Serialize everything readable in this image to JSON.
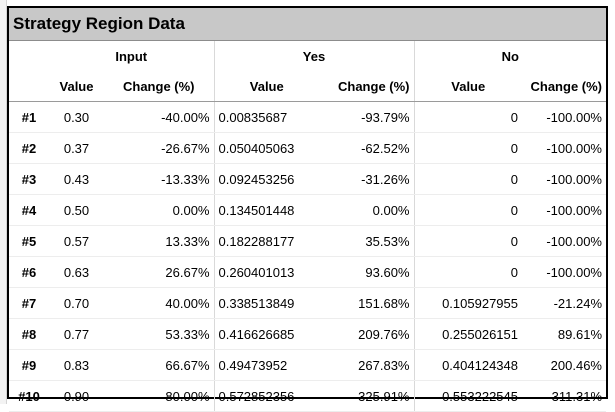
{
  "title": "Strategy Region Data",
  "groups": [
    "Input",
    "Yes",
    "No"
  ],
  "subheaders": {
    "value": "Value",
    "change": "Change (%)"
  },
  "rows": [
    {
      "id": "#1",
      "input_value": "0.30",
      "input_change": "-40.00%",
      "yes_value": "0.00835687",
      "yes_change": "-93.79%",
      "no_value": "0",
      "no_change": "-100.00%"
    },
    {
      "id": "#2",
      "input_value": "0.37",
      "input_change": "-26.67%",
      "yes_value": "0.050405063",
      "yes_change": "-62.52%",
      "no_value": "0",
      "no_change": "-100.00%"
    },
    {
      "id": "#3",
      "input_value": "0.43",
      "input_change": "-13.33%",
      "yes_value": "0.092453256",
      "yes_change": "-31.26%",
      "no_value": "0",
      "no_change": "-100.00%"
    },
    {
      "id": "#4",
      "input_value": "0.50",
      "input_change": "0.00%",
      "yes_value": "0.134501448",
      "yes_change": "0.00%",
      "no_value": "0",
      "no_change": "-100.00%"
    },
    {
      "id": "#5",
      "input_value": "0.57",
      "input_change": "13.33%",
      "yes_value": "0.182288177",
      "yes_change": "35.53%",
      "no_value": "0",
      "no_change": "-100.00%"
    },
    {
      "id": "#6",
      "input_value": "0.63",
      "input_change": "26.67%",
      "yes_value": "0.260401013",
      "yes_change": "93.60%",
      "no_value": "0",
      "no_change": "-100.00%"
    },
    {
      "id": "#7",
      "input_value": "0.70",
      "input_change": "40.00%",
      "yes_value": "0.338513849",
      "yes_change": "151.68%",
      "no_value": "0.105927955",
      "no_change": "-21.24%"
    },
    {
      "id": "#8",
      "input_value": "0.77",
      "input_change": "53.33%",
      "yes_value": "0.416626685",
      "yes_change": "209.76%",
      "no_value": "0.255026151",
      "no_change": "89.61%"
    },
    {
      "id": "#9",
      "input_value": "0.83",
      "input_change": "66.67%",
      "yes_value": "0.49473952",
      "yes_change": "267.83%",
      "no_value": "0.404124348",
      "no_change": "200.46%"
    },
    {
      "id": "#10",
      "input_value": "0.90",
      "input_change": "80.00%",
      "yes_value": "0.572852356",
      "yes_change": "325.91%",
      "no_value": "0.553222545",
      "no_change": "311.31%"
    }
  ]
}
